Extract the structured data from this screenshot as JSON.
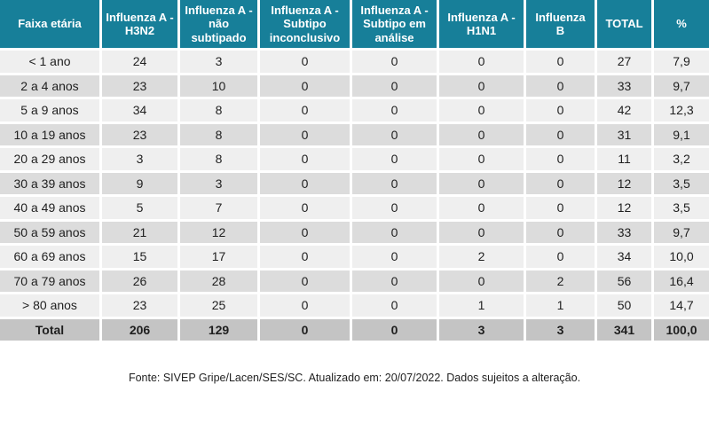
{
  "colors": {
    "header_bg": "#177f99",
    "header_text": "#ffffff",
    "row_light": "#efefef",
    "row_dark": "#dcdcdc",
    "total_bg": "#c4c4c4",
    "body_text": "#1f1f1f"
  },
  "chart_data": {
    "type": "table",
    "columns": [
      "Faixa etária",
      "Influenza A - H3N2",
      "Influenza A - não subtipado",
      "Influenza A - Subtipo inconclusivo",
      "Influenza A - Subtipo em análise",
      "Influenza A - H1N1",
      "Influenza B",
      "TOTAL",
      "%"
    ],
    "rows": [
      {
        "label": "< 1 ano",
        "values": [
          "24",
          "3",
          "0",
          "0",
          "0",
          "0",
          "27",
          "7,9"
        ]
      },
      {
        "label": "2 a 4 anos",
        "values": [
          "23",
          "10",
          "0",
          "0",
          "0",
          "0",
          "33",
          "9,7"
        ]
      },
      {
        "label": "5 a 9 anos",
        "values": [
          "34",
          "8",
          "0",
          "0",
          "0",
          "0",
          "42",
          "12,3"
        ]
      },
      {
        "label": "10 a 19 anos",
        "values": [
          "23",
          "8",
          "0",
          "0",
          "0",
          "0",
          "31",
          "9,1"
        ]
      },
      {
        "label": "20 a 29 anos",
        "values": [
          "3",
          "8",
          "0",
          "0",
          "0",
          "0",
          "11",
          "3,2"
        ]
      },
      {
        "label": "30 a 39 anos",
        "values": [
          "9",
          "3",
          "0",
          "0",
          "0",
          "0",
          "12",
          "3,5"
        ]
      },
      {
        "label": "40 a 49 anos",
        "values": [
          "5",
          "7",
          "0",
          "0",
          "0",
          "0",
          "12",
          "3,5"
        ]
      },
      {
        "label": "50 a 59 anos",
        "values": [
          "21",
          "12",
          "0",
          "0",
          "0",
          "0",
          "33",
          "9,7"
        ]
      },
      {
        "label": "60 a 69 anos",
        "values": [
          "15",
          "17",
          "0",
          "0",
          "2",
          "0",
          "34",
          "10,0"
        ]
      },
      {
        "label": "70 a 79 anos",
        "values": [
          "26",
          "28",
          "0",
          "0",
          "0",
          "2",
          "56",
          "16,4"
        ]
      },
      {
        "label": "> 80 anos",
        "values": [
          "23",
          "25",
          "0",
          "0",
          "1",
          "1",
          "50",
          "14,7"
        ]
      }
    ],
    "total_row": {
      "label": "Total",
      "values": [
        "206",
        "129",
        "0",
        "0",
        "3",
        "3",
        "341",
        "100,0"
      ]
    }
  },
  "footer": {
    "source": "Fonte: SIVEP Gripe/Lacen/SES/SC. Atualizado em: 20/07/2022. Dados sujeitos a alteração."
  }
}
